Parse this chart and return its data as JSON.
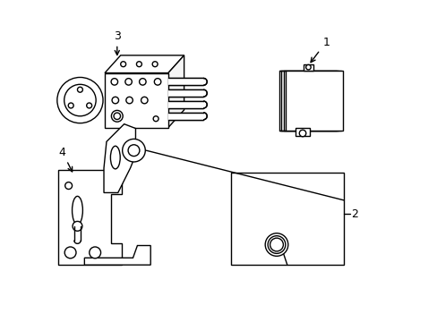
{
  "bg_color": "#ffffff",
  "line_color": "#000000",
  "lw": 1.0,
  "fig_width": 4.89,
  "fig_height": 3.6,
  "dpi": 100
}
